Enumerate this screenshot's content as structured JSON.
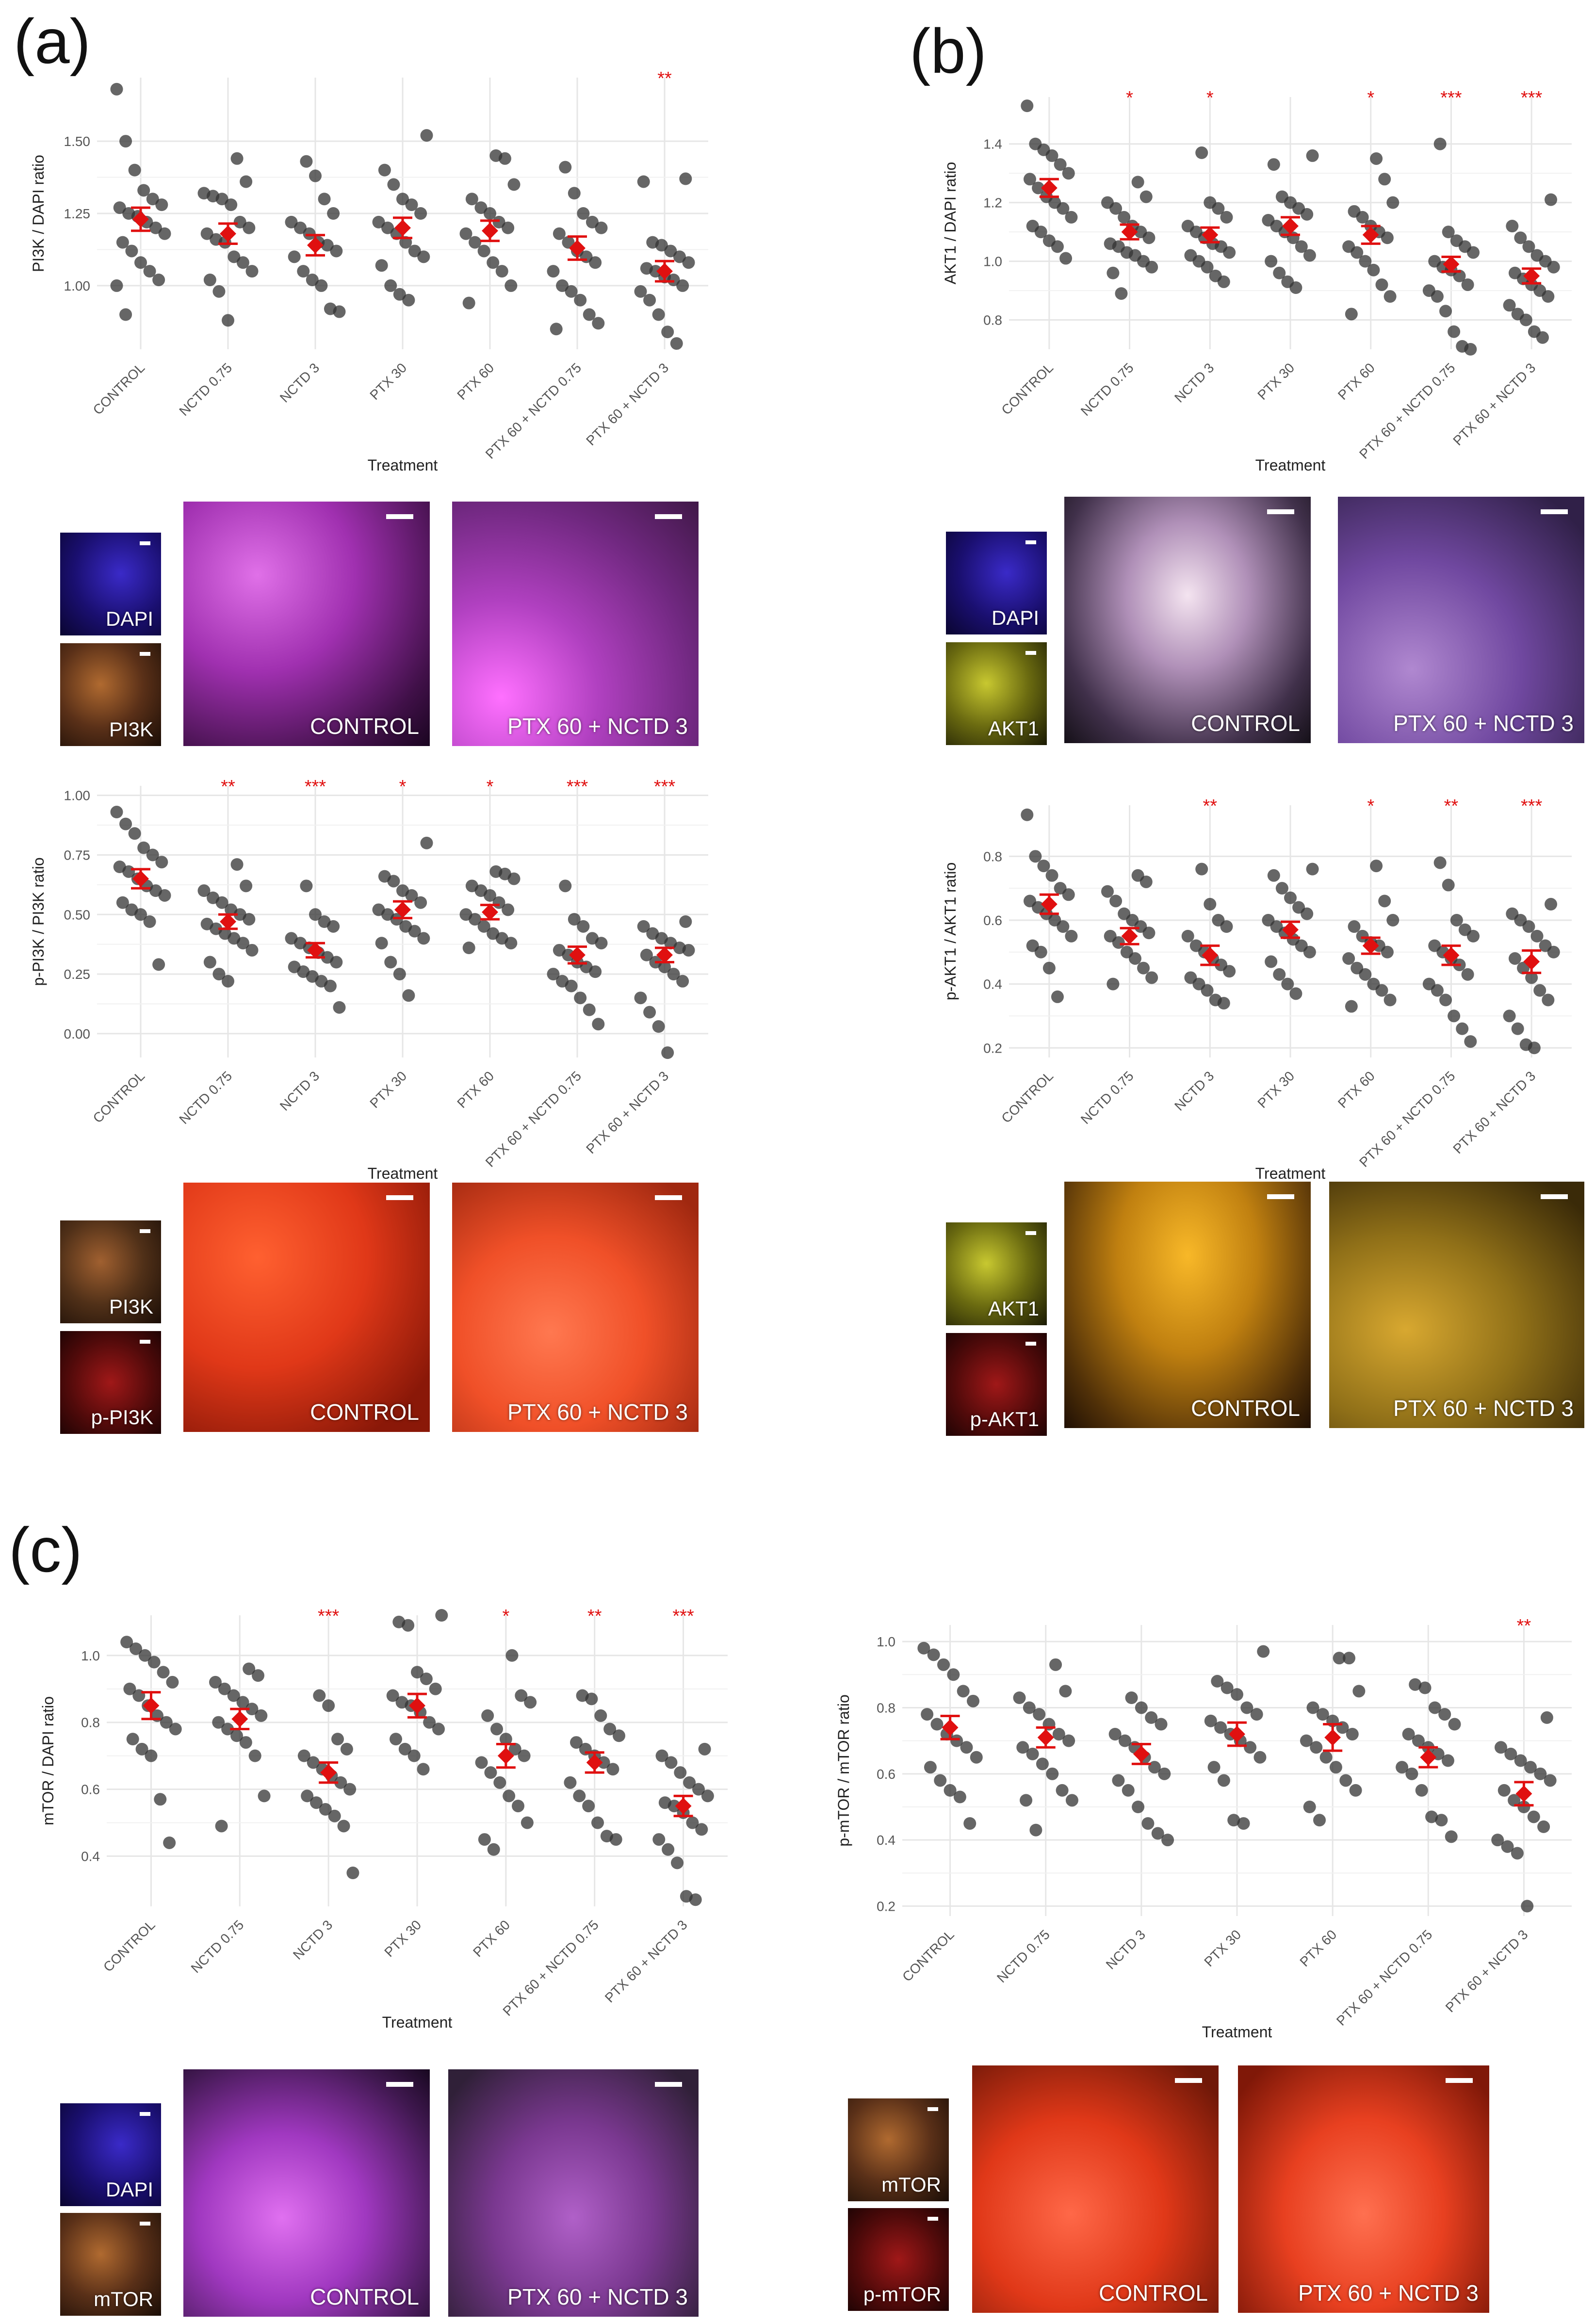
{
  "panels": [
    {
      "letter": "(a)"
    },
    {
      "letter": "(b)"
    },
    {
      "letter": "(c)"
    }
  ],
  "colors": {
    "point": "#333333",
    "mean": "#e01010",
    "grid": "#e6e6e6",
    "sig": "#e01010"
  },
  "chart_data": [
    {
      "id": "pi3k-dapi",
      "type": "scatter",
      "xlabel": "Treatment",
      "ylabel": "PI3K / DAPI ratio",
      "categories": [
        "CONTROL",
        "NCTD 0.75",
        "NCTD 3",
        "PTX 30",
        "PTX 60",
        "PTX 60 + NCTD 0.75",
        "PTX 60 + NCTD 3"
      ],
      "yticks": [
        "1.00",
        "1.25",
        "1.50"
      ],
      "ylim": [
        0.78,
        1.72
      ],
      "means": [
        1.23,
        1.18,
        1.14,
        1.2,
        1.19,
        1.13,
        1.05
      ],
      "sem": [
        0.04,
        0.035,
        0.035,
        0.035,
        0.035,
        0.04,
        0.035
      ],
      "significance": [
        "",
        "",
        "",
        "",
        "",
        "",
        "**"
      ],
      "points": [
        [
          1.68,
          1.5,
          1.4,
          1.33,
          1.3,
          1.28,
          1.27,
          1.25,
          1.24,
          1.22,
          1.2,
          1.18,
          1.15,
          1.12,
          1.08,
          1.05,
          1.02,
          1.0,
          0.9
        ],
        [
          1.44,
          1.36,
          1.32,
          1.31,
          1.3,
          1.28,
          1.22,
          1.2,
          1.18,
          1.16,
          1.15,
          1.1,
          1.08,
          1.05,
          1.02,
          0.98,
          0.88
        ],
        [
          1.43,
          1.38,
          1.3,
          1.25,
          1.22,
          1.2,
          1.18,
          1.15,
          1.14,
          1.12,
          1.1,
          1.05,
          1.02,
          1.0,
          0.92,
          0.91
        ],
        [
          1.52,
          1.4,
          1.35,
          1.3,
          1.28,
          1.25,
          1.22,
          1.2,
          1.18,
          1.15,
          1.12,
          1.1,
          1.07,
          1.0,
          0.97,
          0.95
        ],
        [
          1.45,
          1.44,
          1.35,
          1.3,
          1.27,
          1.25,
          1.22,
          1.2,
          1.18,
          1.15,
          1.12,
          1.08,
          1.05,
          1.0,
          0.94
        ],
        [
          1.41,
          1.32,
          1.25,
          1.22,
          1.2,
          1.18,
          1.15,
          1.12,
          1.1,
          1.08,
          1.05,
          1.0,
          0.98,
          0.95,
          0.9,
          0.87,
          0.85
        ],
        [
          1.37,
          1.36,
          1.15,
          1.14,
          1.12,
          1.1,
          1.08,
          1.06,
          1.05,
          1.03,
          1.02,
          1.0,
          0.98,
          0.95,
          0.9,
          0.84,
          0.8
        ]
      ]
    },
    {
      "id": "akt1-dapi",
      "type": "scatter",
      "xlabel": "Treatment",
      "ylabel": "AKT1 / DAPI ratio",
      "categories": [
        "CONTROL",
        "NCTD 0.75",
        "NCTD 3",
        "PTX 30",
        "PTX 60",
        "PTX 60 + NCTD 0.75",
        "PTX 60 + NCTD 3"
      ],
      "yticks": [
        "0.8",
        "1.0",
        "1.2",
        "1.4"
      ],
      "ylim": [
        0.7,
        1.56
      ],
      "means": [
        1.25,
        1.1,
        1.09,
        1.12,
        1.09,
        0.99,
        0.95
      ],
      "sem": [
        0.03,
        0.025,
        0.025,
        0.03,
        0.03,
        0.025,
        0.025
      ],
      "significance": [
        "",
        "*",
        "*",
        "",
        "*",
        "***",
        "***"
      ],
      "points": [
        [
          1.53,
          1.4,
          1.38,
          1.36,
          1.33,
          1.3,
          1.28,
          1.25,
          1.22,
          1.2,
          1.18,
          1.15,
          1.12,
          1.1,
          1.07,
          1.05,
          1.01
        ],
        [
          1.27,
          1.22,
          1.2,
          1.18,
          1.15,
          1.12,
          1.1,
          1.08,
          1.06,
          1.05,
          1.03,
          1.02,
          1.0,
          0.98,
          0.96,
          0.89
        ],
        [
          1.37,
          1.2,
          1.18,
          1.15,
          1.12,
          1.1,
          1.08,
          1.06,
          1.05,
          1.03,
          1.02,
          1.0,
          0.98,
          0.95,
          0.93
        ],
        [
          1.36,
          1.33,
          1.22,
          1.2,
          1.18,
          1.16,
          1.14,
          1.12,
          1.1,
          1.08,
          1.05,
          1.02,
          1.0,
          0.96,
          0.93,
          0.91
        ],
        [
          1.35,
          1.28,
          1.2,
          1.17,
          1.15,
          1.12,
          1.1,
          1.08,
          1.05,
          1.03,
          1.0,
          0.97,
          0.92,
          0.88,
          0.82
        ],
        [
          1.4,
          1.1,
          1.07,
          1.05,
          1.03,
          1.0,
          0.98,
          0.97,
          0.95,
          0.92,
          0.9,
          0.88,
          0.83,
          0.76,
          0.71,
          0.7
        ],
        [
          1.21,
          1.12,
          1.08,
          1.05,
          1.02,
          1.0,
          0.98,
          0.96,
          0.94,
          0.92,
          0.9,
          0.88,
          0.85,
          0.82,
          0.8,
          0.76,
          0.74
        ]
      ]
    },
    {
      "id": "ppi3k-pi3k",
      "type": "scatter",
      "xlabel": "Treatment",
      "ylabel": "p-PI3K / PI3K ratio",
      "categories": [
        "CONTROL",
        "NCTD 0.75",
        "NCTD 3",
        "PTX 30",
        "PTX 60",
        "PTX 60 + NCTD 0.75",
        "PTX 60 + NCTD 3"
      ],
      "yticks": [
        "0.00",
        "0.25",
        "0.50",
        "0.75",
        "1.00"
      ],
      "ylim": [
        -0.1,
        1.04
      ],
      "means": [
        0.65,
        0.47,
        0.35,
        0.52,
        0.51,
        0.33,
        0.33
      ],
      "sem": [
        0.04,
        0.03,
        0.03,
        0.035,
        0.03,
        0.035,
        0.03
      ],
      "significance": [
        "",
        "**",
        "***",
        "*",
        "*",
        "***",
        "***"
      ],
      "points": [
        [
          0.93,
          0.88,
          0.84,
          0.78,
          0.75,
          0.72,
          0.7,
          0.68,
          0.65,
          0.62,
          0.6,
          0.58,
          0.55,
          0.52,
          0.5,
          0.47,
          0.29
        ],
        [
          0.71,
          0.62,
          0.6,
          0.57,
          0.55,
          0.52,
          0.5,
          0.48,
          0.46,
          0.44,
          0.42,
          0.4,
          0.38,
          0.35,
          0.3,
          0.25,
          0.22
        ],
        [
          0.62,
          0.5,
          0.47,
          0.45,
          0.4,
          0.38,
          0.36,
          0.34,
          0.32,
          0.3,
          0.28,
          0.26,
          0.24,
          0.22,
          0.2,
          0.11
        ],
        [
          0.8,
          0.66,
          0.64,
          0.6,
          0.58,
          0.55,
          0.52,
          0.5,
          0.48,
          0.45,
          0.43,
          0.4,
          0.38,
          0.3,
          0.25,
          0.16
        ],
        [
          0.68,
          0.67,
          0.65,
          0.62,
          0.6,
          0.58,
          0.55,
          0.52,
          0.5,
          0.48,
          0.45,
          0.42,
          0.4,
          0.38,
          0.36
        ],
        [
          0.62,
          0.48,
          0.45,
          0.4,
          0.38,
          0.35,
          0.33,
          0.3,
          0.28,
          0.26,
          0.25,
          0.22,
          0.2,
          0.15,
          0.1,
          0.04
        ],
        [
          0.47,
          0.45,
          0.42,
          0.4,
          0.38,
          0.36,
          0.35,
          0.33,
          0.3,
          0.28,
          0.25,
          0.22,
          0.15,
          0.09,
          0.03,
          -0.08
        ]
      ]
    },
    {
      "id": "pakt1-akt1",
      "type": "scatter",
      "xlabel": "Treatment",
      "ylabel": "p-AKT1 / AKT1 ratio",
      "categories": [
        "CONTROL",
        "NCTD 0.75",
        "NCTD 3",
        "PTX 30",
        "PTX 60",
        "PTX 60 + NCTD 0.75",
        "PTX 60 + NCTD 3"
      ],
      "yticks": [
        "0.2",
        "0.4",
        "0.6",
        "0.8"
      ],
      "ylim": [
        0.17,
        0.96
      ],
      "means": [
        0.65,
        0.55,
        0.49,
        0.57,
        0.52,
        0.49,
        0.47
      ],
      "sem": [
        0.03,
        0.025,
        0.03,
        0.025,
        0.025,
        0.03,
        0.035
      ],
      "significance": [
        "",
        "",
        "**",
        "",
        "*",
        "**",
        "***"
      ],
      "points": [
        [
          0.93,
          0.8,
          0.77,
          0.74,
          0.7,
          0.68,
          0.66,
          0.64,
          0.62,
          0.6,
          0.58,
          0.55,
          0.52,
          0.5,
          0.45,
          0.36
        ],
        [
          0.74,
          0.72,
          0.69,
          0.66,
          0.62,
          0.6,
          0.58,
          0.56,
          0.55,
          0.53,
          0.5,
          0.48,
          0.45,
          0.42,
          0.4
        ],
        [
          0.76,
          0.65,
          0.6,
          0.58,
          0.55,
          0.52,
          0.5,
          0.48,
          0.46,
          0.44,
          0.42,
          0.4,
          0.38,
          0.35,
          0.34
        ],
        [
          0.76,
          0.74,
          0.7,
          0.67,
          0.64,
          0.62,
          0.6,
          0.58,
          0.56,
          0.54,
          0.52,
          0.5,
          0.47,
          0.43,
          0.4,
          0.37
        ],
        [
          0.77,
          0.66,
          0.6,
          0.58,
          0.55,
          0.53,
          0.52,
          0.5,
          0.48,
          0.45,
          0.43,
          0.4,
          0.38,
          0.35,
          0.33
        ],
        [
          0.78,
          0.71,
          0.6,
          0.57,
          0.55,
          0.52,
          0.5,
          0.48,
          0.46,
          0.43,
          0.4,
          0.38,
          0.35,
          0.3,
          0.26,
          0.22
        ],
        [
          0.65,
          0.62,
          0.6,
          0.58,
          0.55,
          0.52,
          0.5,
          0.48,
          0.45,
          0.42,
          0.38,
          0.35,
          0.3,
          0.26,
          0.21,
          0.2
        ]
      ]
    },
    {
      "id": "mtor-dapi",
      "type": "scatter",
      "xlabel": "Treatment",
      "ylabel": "mTOR / DAPI ratio",
      "categories": [
        "CONTROL",
        "NCTD 0.75",
        "NCTD 3",
        "PTX 30",
        "PTX 60",
        "PTX 60 + NCTD 0.75",
        "PTX 60 + NCTD 3"
      ],
      "yticks": [
        "0.4",
        "0.6",
        "0.8",
        "1.0"
      ],
      "ylim": [
        0.25,
        1.12
      ],
      "means": [
        0.85,
        0.81,
        0.65,
        0.85,
        0.7,
        0.68,
        0.55
      ],
      "sem": [
        0.04,
        0.03,
        0.03,
        0.035,
        0.035,
        0.03,
        0.03
      ],
      "significance": [
        "",
        "",
        "***",
        "",
        "*",
        "**",
        "***"
      ],
      "points": [
        [
          1.04,
          1.02,
          1.0,
          0.98,
          0.95,
          0.92,
          0.9,
          0.88,
          0.85,
          0.82,
          0.8,
          0.78,
          0.75,
          0.72,
          0.7,
          0.57,
          0.44
        ],
        [
          0.96,
          0.94,
          0.92,
          0.9,
          0.88,
          0.86,
          0.84,
          0.82,
          0.8,
          0.78,
          0.76,
          0.74,
          0.7,
          0.58,
          0.49
        ],
        [
          0.88,
          0.85,
          0.75,
          0.72,
          0.7,
          0.68,
          0.66,
          0.64,
          0.62,
          0.6,
          0.58,
          0.56,
          0.54,
          0.52,
          0.49,
          0.35
        ],
        [
          1.12,
          1.1,
          1.09,
          0.95,
          0.93,
          0.9,
          0.88,
          0.86,
          0.85,
          0.83,
          0.8,
          0.78,
          0.75,
          0.72,
          0.7,
          0.66
        ],
        [
          1.0,
          0.88,
          0.86,
          0.82,
          0.78,
          0.75,
          0.72,
          0.7,
          0.68,
          0.65,
          0.62,
          0.58,
          0.55,
          0.5,
          0.45,
          0.42
        ],
        [
          0.88,
          0.87,
          0.82,
          0.78,
          0.76,
          0.74,
          0.72,
          0.7,
          0.68,
          0.66,
          0.62,
          0.58,
          0.55,
          0.5,
          0.46,
          0.45
        ],
        [
          0.72,
          0.7,
          0.68,
          0.65,
          0.62,
          0.6,
          0.58,
          0.56,
          0.55,
          0.53,
          0.5,
          0.48,
          0.45,
          0.42,
          0.38,
          0.28,
          0.27
        ]
      ]
    },
    {
      "id": "pmtor-mtor",
      "type": "scatter",
      "xlabel": "Treatment",
      "ylabel": "p-mTOR / mTOR ratio",
      "categories": [
        "CONTROL",
        "NCTD 0.75",
        "NCTD 3",
        "PTX 30",
        "PTX 60",
        "PTX 60 + NCTD 0.75",
        "PTX 60 + NCTD 3"
      ],
      "yticks": [
        "0.2",
        "0.4",
        "0.6",
        "0.8",
        "1.0"
      ],
      "ylim": [
        0.17,
        1.05
      ],
      "means": [
        0.74,
        0.71,
        0.66,
        0.72,
        0.71,
        0.65,
        0.54
      ],
      "sem": [
        0.035,
        0.03,
        0.03,
        0.035,
        0.04,
        0.03,
        0.035
      ],
      "significance": [
        "",
        "",
        "",
        "",
        "",
        "",
        "**"
      ],
      "points": [
        [
          0.98,
          0.96,
          0.93,
          0.9,
          0.85,
          0.82,
          0.78,
          0.75,
          0.72,
          0.7,
          0.68,
          0.65,
          0.62,
          0.58,
          0.55,
          0.53,
          0.45
        ],
        [
          0.93,
          0.85,
          0.83,
          0.8,
          0.78,
          0.75,
          0.72,
          0.7,
          0.68,
          0.66,
          0.63,
          0.6,
          0.55,
          0.52,
          0.52,
          0.43
        ],
        [
          0.83,
          0.8,
          0.77,
          0.75,
          0.72,
          0.7,
          0.68,
          0.65,
          0.62,
          0.6,
          0.58,
          0.55,
          0.5,
          0.45,
          0.42,
          0.4
        ],
        [
          0.97,
          0.88,
          0.86,
          0.84,
          0.8,
          0.78,
          0.76,
          0.74,
          0.72,
          0.7,
          0.68,
          0.65,
          0.62,
          0.58,
          0.46,
          0.45
        ],
        [
          0.95,
          0.95,
          0.85,
          0.8,
          0.78,
          0.76,
          0.74,
          0.72,
          0.7,
          0.68,
          0.65,
          0.62,
          0.58,
          0.55,
          0.5,
          0.46
        ],
        [
          0.87,
          0.86,
          0.8,
          0.78,
          0.75,
          0.72,
          0.7,
          0.68,
          0.66,
          0.64,
          0.62,
          0.6,
          0.55,
          0.47,
          0.46,
          0.41
        ],
        [
          0.77,
          0.68,
          0.66,
          0.64,
          0.62,
          0.6,
          0.58,
          0.55,
          0.52,
          0.5,
          0.47,
          0.44,
          0.4,
          0.38,
          0.36,
          0.2
        ]
      ]
    }
  ],
  "micrographs": {
    "a1": {
      "small": [
        "DAPI",
        "PI3K"
      ],
      "large": [
        "CONTROL",
        "PTX 60 + NCTD 3"
      ]
    },
    "a2": {
      "small": [
        "PI3K",
        "p-PI3K"
      ],
      "large": [
        "CONTROL",
        "PTX 60 + NCTD 3"
      ]
    },
    "b1": {
      "small": [
        "DAPI",
        "AKT1"
      ],
      "large": [
        "CONTROL",
        "PTX 60 + NCTD 3"
      ]
    },
    "b2": {
      "small": [
        "AKT1",
        "p-AKT1"
      ],
      "large": [
        "CONTROL",
        "PTX 60 + NCTD 3"
      ]
    },
    "c1": {
      "small": [
        "DAPI",
        "mTOR"
      ],
      "large": [
        "CONTROL",
        "PTX 60 + NCTD 3"
      ]
    },
    "c2": {
      "small": [
        "mTOR",
        "p-mTOR"
      ],
      "large": [
        "CONTROL",
        "PTX 60 + NCTD 3"
      ]
    }
  },
  "micrograph_colors": {
    "dapi": "#2a1aa8",
    "pi3k": "#a06030",
    "ppi3k": "#a01818",
    "akt1": "#9a9a18",
    "pakt1": "#a01818",
    "mtor": "#a06030",
    "pmtor": "#a01818",
    "magenta_ctrl": "#c040c8",
    "magenta_trt": "#b048c0",
    "red_ctrl": "#ee4020",
    "red_trt": "#f05028",
    "akt_ctrl": "#e8d0e8",
    "akt_trt": "#8050b0",
    "pakt_ctrl": "#d89818",
    "pakt_trt": "#a88018",
    "mtor_ctrl": "#c050d0",
    "mtor_trt": "#9048a8",
    "pmtor_ctrl": "#ee4828",
    "pmtor_trt": "#e04828"
  }
}
